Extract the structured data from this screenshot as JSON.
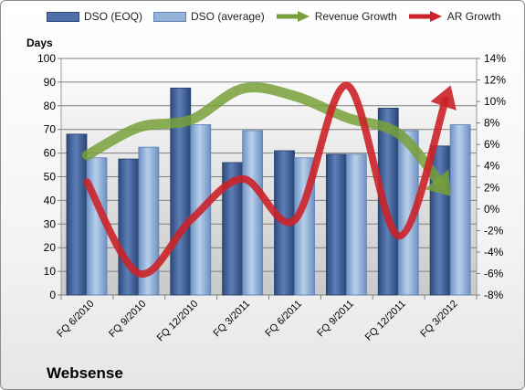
{
  "chart_data": {
    "type": "bar",
    "title": "Websense",
    "ylabel": "Days",
    "categories": [
      "FQ 6/2010",
      "FQ 9/2010",
      "FQ 12/2010",
      "FQ 3/2011",
      "FQ 6/2011",
      "FQ 9/2011",
      "FQ 12/2011",
      "FQ 3/2012"
    ],
    "ylim": [
      0,
      100
    ],
    "y_ticks": [
      "0",
      "10",
      "20",
      "30",
      "40",
      "50",
      "60",
      "70",
      "80",
      "90",
      "100"
    ],
    "y2lim": [
      -0.08,
      0.14
    ],
    "y2_ticks": [
      "-8%",
      "-6%",
      "-4%",
      "-2%",
      "0%",
      "2%",
      "4%",
      "6%",
      "8%",
      "10%",
      "12%",
      "14%"
    ],
    "grid": true,
    "legend_position": "top",
    "series": [
      {
        "name": "DSO (EOQ)",
        "kind": "bar",
        "axis": "left",
        "color": "#4f6fa8",
        "values": [
          68,
          57.5,
          87.5,
          56,
          61,
          59.5,
          79,
          63
        ]
      },
      {
        "name": "DSO (average)",
        "kind": "bar",
        "axis": "left",
        "color": "#95b3d7",
        "values": [
          58,
          62.5,
          72,
          69.5,
          58,
          59.5,
          69.5,
          72
        ]
      },
      {
        "name": "Revenue Growth",
        "kind": "line",
        "axis": "right",
        "color": "#77a03a",
        "values": [
          0.05,
          0.076,
          0.083,
          0.112,
          0.105,
          0.085,
          0.07,
          0.012
        ]
      },
      {
        "name": "AR Growth",
        "kind": "line",
        "axis": "right",
        "color": "#cc2229",
        "values": [
          0.025,
          -0.06,
          -0.01,
          0.028,
          -0.01,
          0.115,
          -0.025,
          0.115
        ]
      }
    ]
  }
}
